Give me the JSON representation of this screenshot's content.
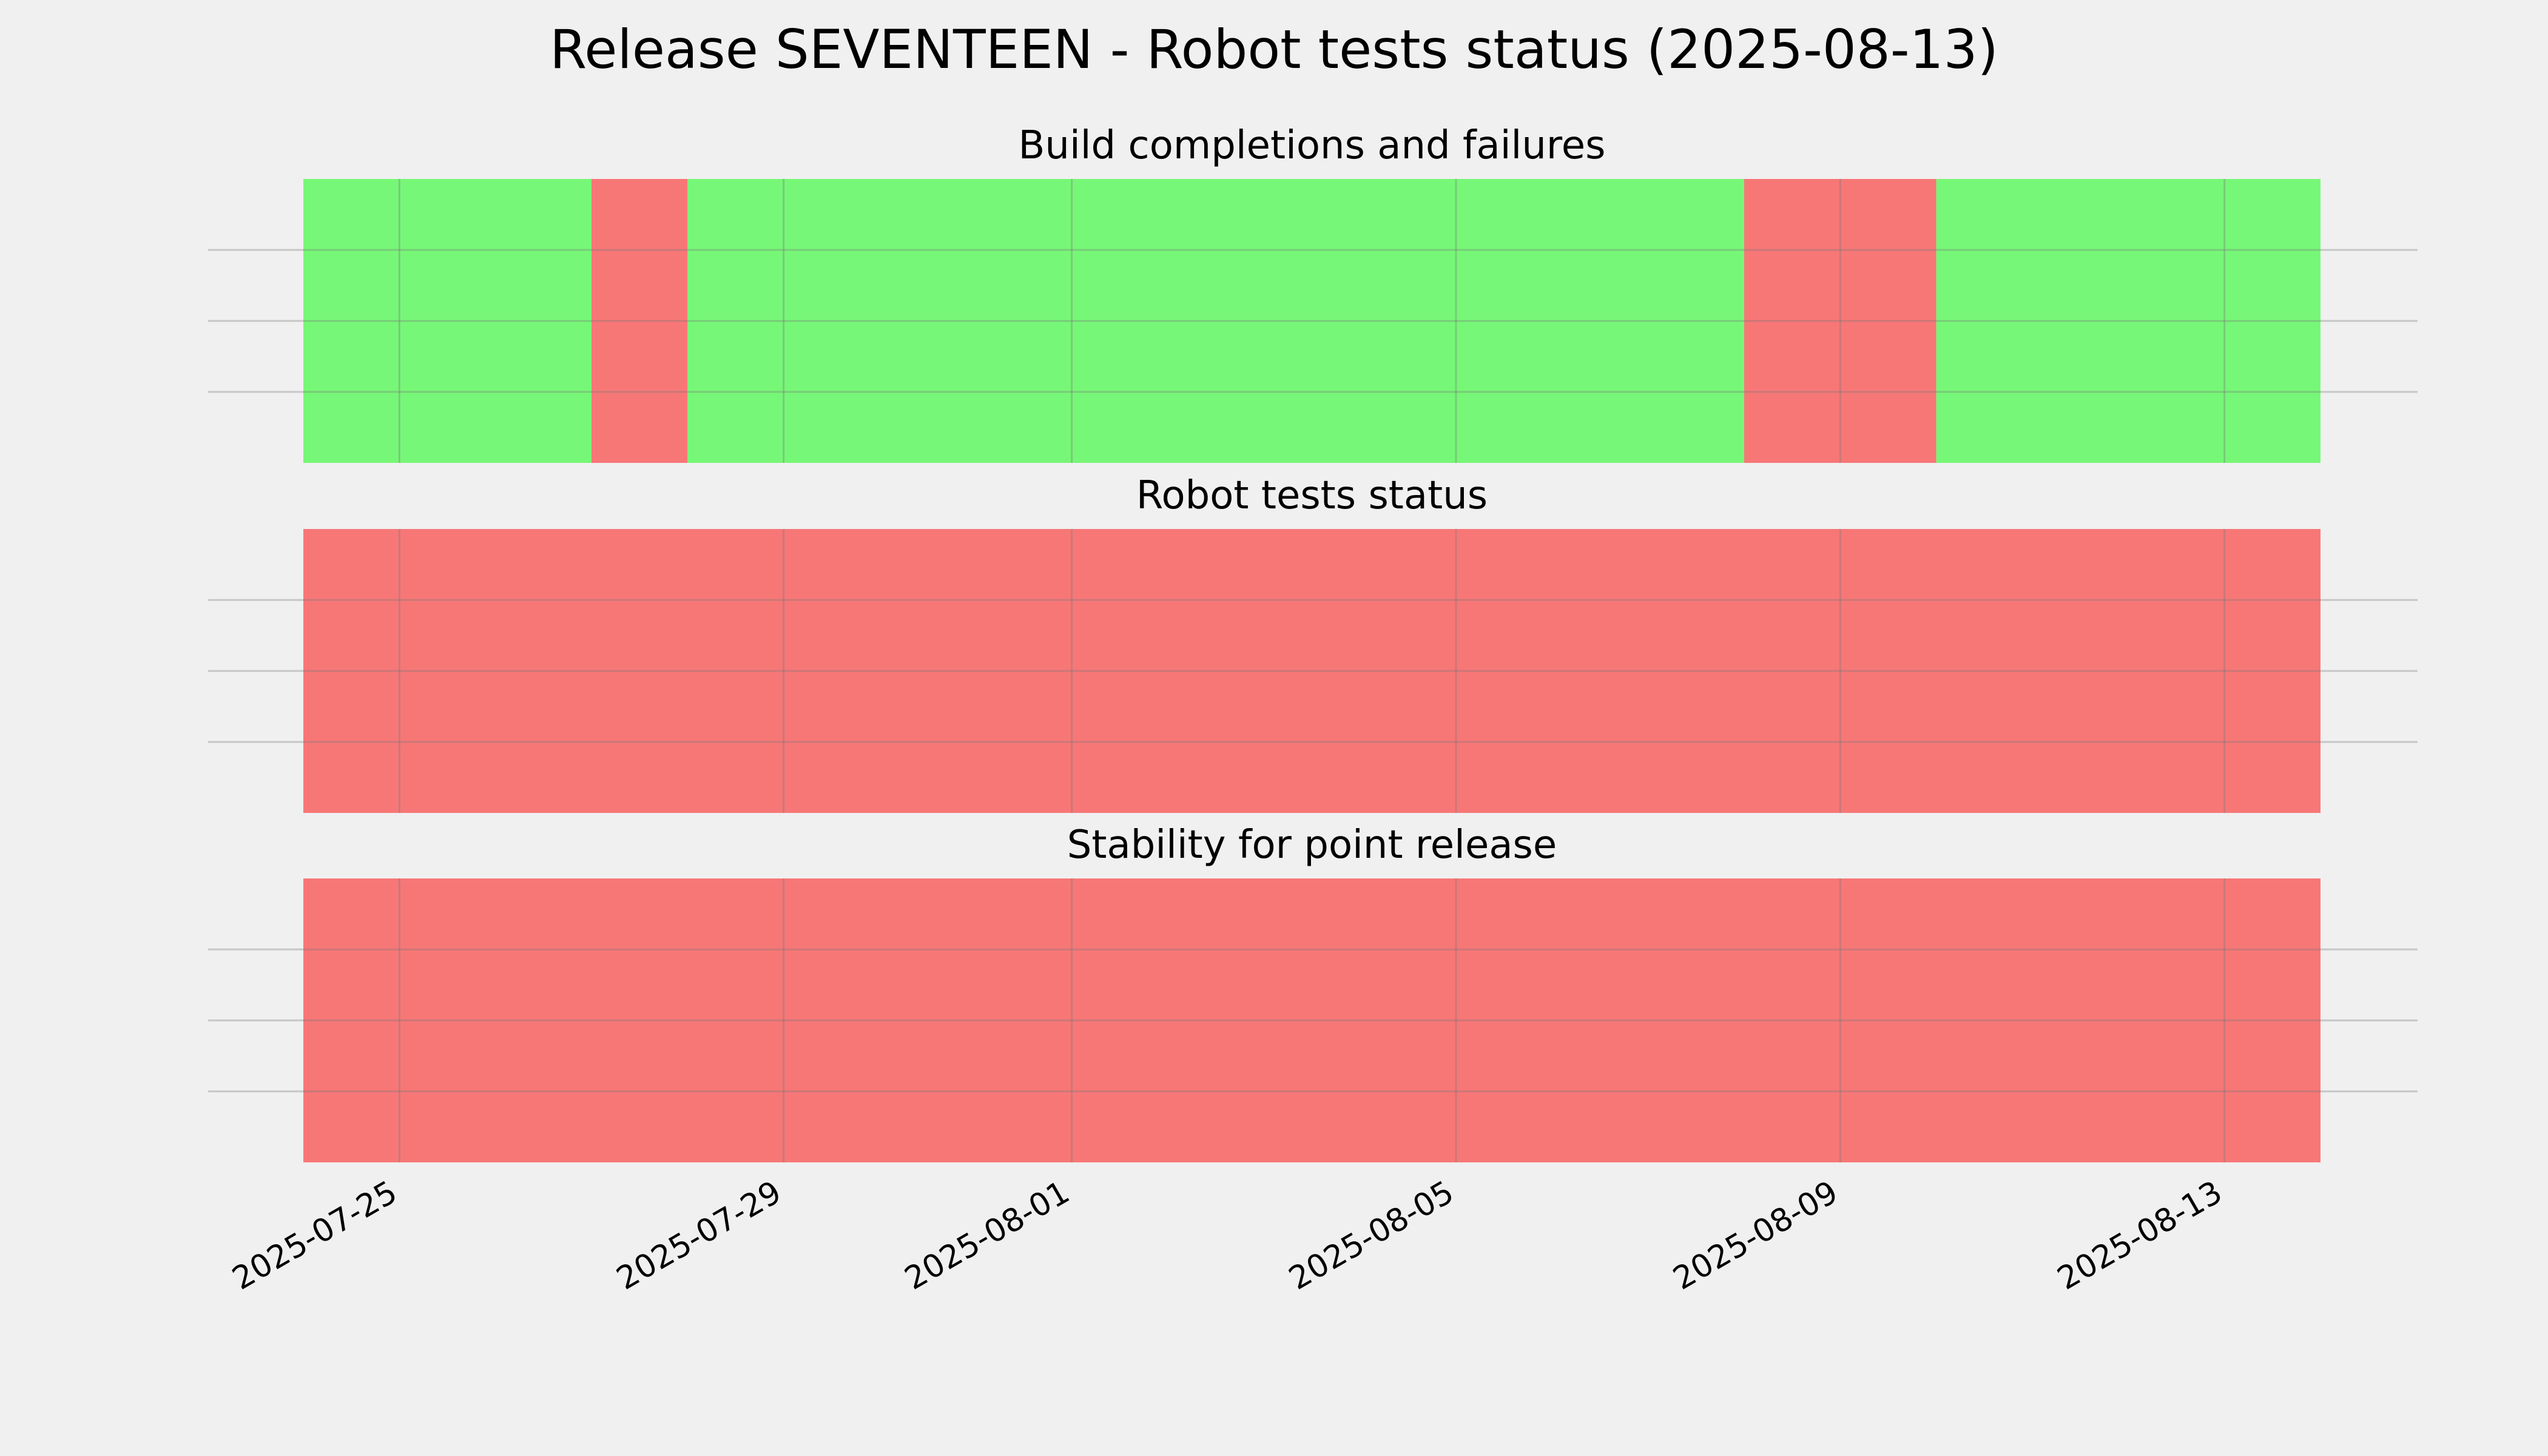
{
  "chart_title": "Release SEVENTEEN - Robot tests status (2025-08-13)",
  "chart_data": [
    {
      "type": "timeline",
      "title": "Build completions and failures",
      "x_range": [
        "2025-07-24 00:00",
        "2025-08-14 00:00"
      ],
      "segments": [
        {
          "start": "2025-07-24 00:00",
          "end": "2025-07-27 00:00",
          "status": "success"
        },
        {
          "start": "2025-07-27 00:00",
          "end": "2025-07-28 00:00",
          "status": "failure"
        },
        {
          "start": "2025-07-28 00:00",
          "end": "2025-08-08 00:00",
          "status": "success"
        },
        {
          "start": "2025-08-08 00:00",
          "end": "2025-08-10 00:00",
          "status": "failure"
        },
        {
          "start": "2025-08-10 00:00",
          "end": "2025-08-14 00:00",
          "status": "success"
        }
      ]
    },
    {
      "type": "timeline",
      "title": "Robot tests status",
      "x_range": [
        "2025-07-24 00:00",
        "2025-08-14 00:00"
      ],
      "segments": [
        {
          "start": "2025-07-24 00:00",
          "end": "2025-08-14 00:00",
          "status": "failure"
        }
      ]
    },
    {
      "type": "timeline",
      "title": "Stability for point release",
      "x_range": [
        "2025-07-24 00:00",
        "2025-08-14 00:00"
      ],
      "segments": [
        {
          "start": "2025-07-24 00:00",
          "end": "2025-08-14 00:00",
          "status": "failure"
        }
      ]
    }
  ],
  "x_ticks": [
    "2025-07-25",
    "2025-07-29",
    "2025-08-01",
    "2025-08-05",
    "2025-08-09",
    "2025-08-13"
  ],
  "grid": true,
  "colors": {
    "success": "#77f777",
    "failure": "#f77777",
    "background": "#f0f0f0",
    "grid": "#c8c8c8"
  }
}
